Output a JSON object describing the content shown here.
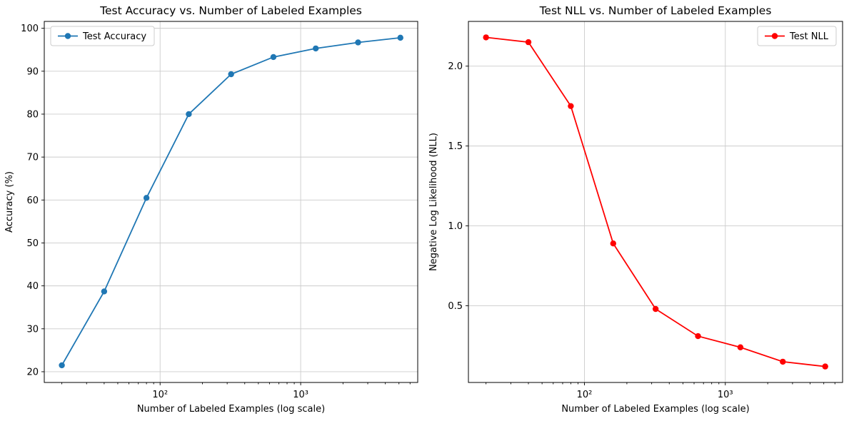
{
  "figure": {
    "background": "#ffffff",
    "frame_color": "#000000"
  },
  "chart_data": [
    {
      "type": "line",
      "title": "Test Accuracy vs. Number of Labeled Examples",
      "xlabel": "Number of Labeled Examples (log scale)",
      "ylabel": "Accuracy (%)",
      "xscale": "log",
      "grid": true,
      "grid_color": "#cccccc",
      "x": [
        20,
        40,
        80,
        160,
        320,
        640,
        1280,
        2560,
        5120
      ],
      "series": [
        {
          "name": "Test Accuracy",
          "values": [
            21.5,
            38.7,
            60.5,
            80.0,
            89.3,
            93.3,
            95.3,
            96.7,
            97.8
          ],
          "color": "#1f77b4",
          "marker": "o"
        }
      ],
      "xlim": [
        15,
        6800
      ],
      "ylim": [
        17.5,
        101.6
      ],
      "yticks": [
        20,
        30,
        40,
        50,
        60,
        70,
        80,
        90,
        100
      ],
      "ytick_labels": [
        "20",
        "30",
        "40",
        "50",
        "60",
        "70",
        "80",
        "90",
        "100"
      ],
      "xticks": [
        100,
        1000
      ],
      "xtick_labels": [
        "10²",
        "10³"
      ],
      "legend_position": "upper-left"
    },
    {
      "type": "line",
      "title": "Test NLL vs. Number of Labeled Examples",
      "xlabel": "Number of Labeled Examples (log scale)",
      "ylabel": "Negative Log Likelihood (NLL)",
      "xscale": "log",
      "grid": true,
      "grid_color": "#cccccc",
      "x": [
        20,
        40,
        80,
        160,
        320,
        640,
        1280,
        2560,
        5120
      ],
      "series": [
        {
          "name": "Test NLL",
          "values": [
            2.18,
            2.15,
            1.75,
            0.89,
            0.48,
            0.31,
            0.24,
            0.15,
            0.12
          ],
          "color": "#ff0000",
          "marker": "o"
        }
      ],
      "xlim": [
        15,
        6800
      ],
      "ylim": [
        0.02,
        2.28
      ],
      "yticks": [
        0.5,
        1.0,
        1.5,
        2.0
      ],
      "ytick_labels": [
        "0.5",
        "1.0",
        "1.5",
        "2.0"
      ],
      "xticks": [
        100,
        1000
      ],
      "xtick_labels": [
        "10²",
        "10³"
      ],
      "legend_position": "upper-right"
    }
  ]
}
